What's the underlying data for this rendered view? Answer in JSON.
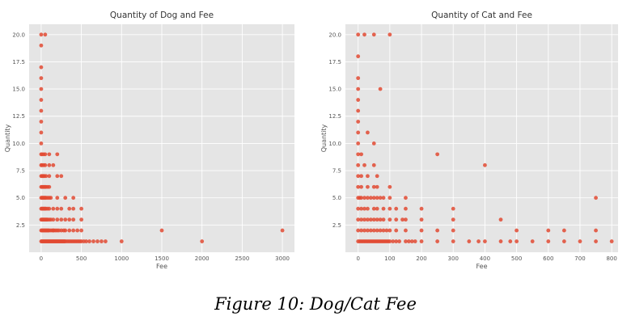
{
  "caption": "Figure 10: Dog/Cat Fee",
  "colors": {
    "panel_bg": "#e5e5e5",
    "grid": "#ffffff",
    "marker": "#e24a33"
  },
  "chart_data": [
    {
      "type": "scatter",
      "title": "Quantity of Dog and Fee",
      "xlabel": "Fee",
      "ylabel": "Quantity",
      "xlim": [
        -150,
        3150
      ],
      "ylim": [
        0.0,
        20.95
      ],
      "xticks": [
        0,
        500,
        1000,
        1500,
        2000,
        2500,
        3000
      ],
      "yticks": [
        2.5,
        5.0,
        7.5,
        10.0,
        12.5,
        15.0,
        17.5,
        20.0
      ],
      "xtick_labels": [
        "0",
        "500",
        "1000",
        "1500",
        "2000",
        "2500",
        "3000"
      ],
      "ytick_labels": [
        "2.5",
        "5.0",
        "7.5",
        "10.0",
        "12.5",
        "15.0",
        "17.5",
        "20.0"
      ],
      "grid": true,
      "points": [
        [
          0,
          1
        ],
        [
          0,
          2
        ],
        [
          0,
          3
        ],
        [
          0,
          4
        ],
        [
          0,
          5
        ],
        [
          0,
          6
        ],
        [
          0,
          7
        ],
        [
          0,
          8
        ],
        [
          0,
          9
        ],
        [
          0,
          10
        ],
        [
          0,
          11
        ],
        [
          0,
          12
        ],
        [
          0,
          13
        ],
        [
          0,
          14
        ],
        [
          0,
          15
        ],
        [
          0,
          16
        ],
        [
          0,
          17
        ],
        [
          0,
          19
        ],
        [
          0,
          20
        ],
        [
          50,
          20
        ],
        [
          10,
          1
        ],
        [
          20,
          1
        ],
        [
          30,
          1
        ],
        [
          40,
          1
        ],
        [
          50,
          1
        ],
        [
          60,
          1
        ],
        [
          70,
          1
        ],
        [
          80,
          1
        ],
        [
          90,
          1
        ],
        [
          100,
          1
        ],
        [
          110,
          1
        ],
        [
          120,
          1
        ],
        [
          130,
          1
        ],
        [
          140,
          1
        ],
        [
          150,
          1
        ],
        [
          160,
          1
        ],
        [
          170,
          1
        ],
        [
          180,
          1
        ],
        [
          190,
          1
        ],
        [
          200,
          1
        ],
        [
          210,
          1
        ],
        [
          220,
          1
        ],
        [
          230,
          1
        ],
        [
          240,
          1
        ],
        [
          250,
          1
        ],
        [
          260,
          1
        ],
        [
          270,
          1
        ],
        [
          280,
          1
        ],
        [
          290,
          1
        ],
        [
          300,
          1
        ],
        [
          320,
          1
        ],
        [
          340,
          1
        ],
        [
          360,
          1
        ],
        [
          380,
          1
        ],
        [
          400,
          1
        ],
        [
          420,
          1
        ],
        [
          440,
          1
        ],
        [
          460,
          1
        ],
        [
          480,
          1
        ],
        [
          500,
          1
        ],
        [
          530,
          1
        ],
        [
          560,
          1
        ],
        [
          600,
          1
        ],
        [
          650,
          1
        ],
        [
          700,
          1
        ],
        [
          750,
          1
        ],
        [
          800,
          1
        ],
        [
          1000,
          1
        ],
        [
          2000,
          1
        ],
        [
          10,
          2
        ],
        [
          20,
          2
        ],
        [
          30,
          2
        ],
        [
          40,
          2
        ],
        [
          50,
          2
        ],
        [
          60,
          2
        ],
        [
          70,
          2
        ],
        [
          80,
          2
        ],
        [
          90,
          2
        ],
        [
          100,
          2
        ],
        [
          120,
          2
        ],
        [
          140,
          2
        ],
        [
          150,
          2
        ],
        [
          160,
          2
        ],
        [
          180,
          2
        ],
        [
          200,
          2
        ],
        [
          220,
          2
        ],
        [
          250,
          2
        ],
        [
          280,
          2
        ],
        [
          300,
          2
        ],
        [
          350,
          2
        ],
        [
          400,
          2
        ],
        [
          450,
          2
        ],
        [
          500,
          2
        ],
        [
          1500,
          2
        ],
        [
          3000,
          2
        ],
        [
          10,
          3
        ],
        [
          20,
          3
        ],
        [
          30,
          3
        ],
        [
          40,
          3
        ],
        [
          50,
          3
        ],
        [
          60,
          3
        ],
        [
          70,
          3
        ],
        [
          80,
          3
        ],
        [
          100,
          3
        ],
        [
          120,
          3
        ],
        [
          150,
          3
        ],
        [
          200,
          3
        ],
        [
          250,
          3
        ],
        [
          300,
          3
        ],
        [
          350,
          3
        ],
        [
          400,
          3
        ],
        [
          500,
          3
        ],
        [
          10,
          4
        ],
        [
          20,
          4
        ],
        [
          30,
          4
        ],
        [
          40,
          4
        ],
        [
          50,
          4
        ],
        [
          60,
          4
        ],
        [
          80,
          4
        ],
        [
          100,
          4
        ],
        [
          150,
          4
        ],
        [
          200,
          4
        ],
        [
          250,
          4
        ],
        [
          350,
          4
        ],
        [
          400,
          4
        ],
        [
          500,
          4
        ],
        [
          10,
          5
        ],
        [
          20,
          5
        ],
        [
          30,
          5
        ],
        [
          40,
          5
        ],
        [
          50,
          5
        ],
        [
          60,
          5
        ],
        [
          80,
          5
        ],
        [
          100,
          5
        ],
        [
          120,
          5
        ],
        [
          200,
          5
        ],
        [
          300,
          5
        ],
        [
          400,
          5
        ],
        [
          10,
          6
        ],
        [
          20,
          6
        ],
        [
          30,
          6
        ],
        [
          40,
          6
        ],
        [
          50,
          6
        ],
        [
          60,
          6
        ],
        [
          80,
          6
        ],
        [
          100,
          6
        ],
        [
          10,
          7
        ],
        [
          20,
          7
        ],
        [
          30,
          7
        ],
        [
          40,
          7
        ],
        [
          60,
          7
        ],
        [
          100,
          7
        ],
        [
          200,
          7
        ],
        [
          250,
          7
        ],
        [
          10,
          8
        ],
        [
          30,
          8
        ],
        [
          50,
          8
        ],
        [
          100,
          8
        ],
        [
          150,
          8
        ],
        [
          10,
          9
        ],
        [
          30,
          9
        ],
        [
          50,
          9
        ],
        [
          100,
          9
        ],
        [
          200,
          9
        ]
      ]
    },
    {
      "type": "scatter",
      "title": "Quantity of Cat and Fee",
      "xlabel": "Fee",
      "ylabel": "Quantity",
      "xlim": [
        -40,
        820
      ],
      "ylim": [
        0.0,
        20.95
      ],
      "xticks": [
        0,
        100,
        200,
        300,
        400,
        500,
        600,
        700,
        800
      ],
      "yticks": [
        2.5,
        5.0,
        7.5,
        10.0,
        12.5,
        15.0,
        17.5,
        20.0
      ],
      "xtick_labels": [
        "0",
        "100",
        "200",
        "300",
        "400",
        "500",
        "600",
        "700",
        "800"
      ],
      "ytick_labels": [
        "2.5",
        "5.0",
        "7.5",
        "10.0",
        "12.5",
        "15.0",
        "17.5",
        "20.0"
      ],
      "grid": true,
      "points": [
        [
          0,
          1
        ],
        [
          0,
          2
        ],
        [
          0,
          3
        ],
        [
          0,
          4
        ],
        [
          0,
          5
        ],
        [
          0,
          6
        ],
        [
          0,
          7
        ],
        [
          0,
          8
        ],
        [
          0,
          9
        ],
        [
          0,
          10
        ],
        [
          0,
          11
        ],
        [
          0,
          12
        ],
        [
          0,
          13
        ],
        [
          0,
          14
        ],
        [
          0,
          15
        ],
        [
          0,
          16
        ],
        [
          0,
          18
        ],
        [
          0,
          20
        ],
        [
          5,
          1
        ],
        [
          10,
          1
        ],
        [
          15,
          1
        ],
        [
          20,
          1
        ],
        [
          25,
          1
        ],
        [
          30,
          1
        ],
        [
          35,
          1
        ],
        [
          40,
          1
        ],
        [
          45,
          1
        ],
        [
          50,
          1
        ],
        [
          55,
          1
        ],
        [
          60,
          1
        ],
        [
          65,
          1
        ],
        [
          70,
          1
        ],
        [
          75,
          1
        ],
        [
          80,
          1
        ],
        [
          85,
          1
        ],
        [
          90,
          1
        ],
        [
          95,
          1
        ],
        [
          100,
          1
        ],
        [
          110,
          1
        ],
        [
          120,
          1
        ],
        [
          130,
          1
        ],
        [
          150,
          1
        ],
        [
          160,
          1
        ],
        [
          170,
          1
        ],
        [
          180,
          1
        ],
        [
          200,
          1
        ],
        [
          250,
          1
        ],
        [
          300,
          1
        ],
        [
          350,
          1
        ],
        [
          380,
          1
        ],
        [
          400,
          1
        ],
        [
          450,
          1
        ],
        [
          480,
          1
        ],
        [
          500,
          1
        ],
        [
          550,
          1
        ],
        [
          600,
          1
        ],
        [
          650,
          1
        ],
        [
          700,
          1
        ],
        [
          750,
          1
        ],
        [
          800,
          1
        ],
        [
          10,
          2
        ],
        [
          20,
          2
        ],
        [
          30,
          2
        ],
        [
          40,
          2
        ],
        [
          50,
          2
        ],
        [
          60,
          2
        ],
        [
          70,
          2
        ],
        [
          80,
          2
        ],
        [
          90,
          2
        ],
        [
          100,
          2
        ],
        [
          120,
          2
        ],
        [
          150,
          2
        ],
        [
          200,
          2
        ],
        [
          250,
          2
        ],
        [
          300,
          2
        ],
        [
          500,
          2
        ],
        [
          600,
          2
        ],
        [
          650,
          2
        ],
        [
          750,
          2
        ],
        [
          10,
          3
        ],
        [
          20,
          3
        ],
        [
          30,
          3
        ],
        [
          40,
          3
        ],
        [
          50,
          3
        ],
        [
          60,
          3
        ],
        [
          70,
          3
        ],
        [
          80,
          3
        ],
        [
          100,
          3
        ],
        [
          120,
          3
        ],
        [
          140,
          3
        ],
        [
          150,
          3
        ],
        [
          200,
          3
        ],
        [
          300,
          3
        ],
        [
          450,
          3
        ],
        [
          10,
          4
        ],
        [
          20,
          4
        ],
        [
          30,
          4
        ],
        [
          50,
          4
        ],
        [
          60,
          4
        ],
        [
          80,
          4
        ],
        [
          100,
          4
        ],
        [
          120,
          4
        ],
        [
          150,
          4
        ],
        [
          200,
          4
        ],
        [
          300,
          4
        ],
        [
          5,
          5
        ],
        [
          10,
          5
        ],
        [
          20,
          5
        ],
        [
          30,
          5
        ],
        [
          40,
          5
        ],
        [
          50,
          5
        ],
        [
          60,
          5
        ],
        [
          70,
          5
        ],
        [
          80,
          5
        ],
        [
          100,
          5
        ],
        [
          150,
          5
        ],
        [
          750,
          5
        ],
        [
          10,
          6
        ],
        [
          30,
          6
        ],
        [
          50,
          6
        ],
        [
          60,
          6
        ],
        [
          100,
          6
        ],
        [
          10,
          7
        ],
        [
          30,
          7
        ],
        [
          60,
          7
        ],
        [
          20,
          8
        ],
        [
          50,
          8
        ],
        [
          400,
          8
        ],
        [
          10,
          9
        ],
        [
          250,
          9
        ],
        [
          50,
          10
        ],
        [
          30,
          11
        ],
        [
          70,
          15
        ],
        [
          20,
          20
        ],
        [
          50,
          20
        ],
        [
          100,
          20
        ]
      ]
    }
  ]
}
